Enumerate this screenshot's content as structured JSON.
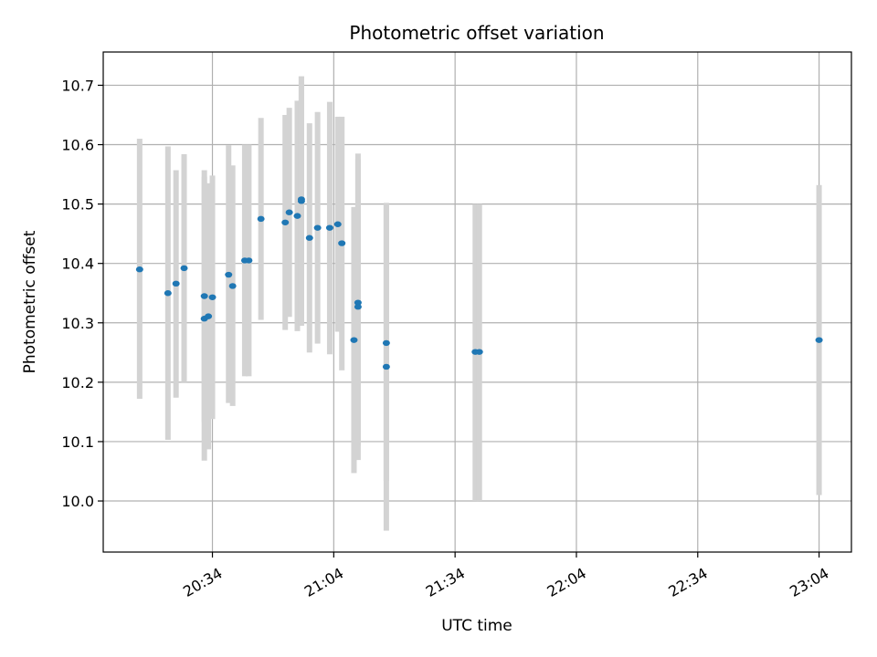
{
  "chart_data": {
    "type": "scatter",
    "title": "Photometric offset variation",
    "xlabel": "UTC time",
    "ylabel": "Photometric offset",
    "grid": true,
    "x_tick_labels": [
      "20:34",
      "21:04",
      "21:34",
      "22:04",
      "22:34",
      "23:04"
    ],
    "y_tick_labels": [
      "10.0",
      "10.1",
      "10.2",
      "10.3",
      "10.4",
      "10.5",
      "10.6",
      "10.7"
    ],
    "y_ticks": [
      10.0,
      10.1,
      10.2,
      10.3,
      10.4,
      10.5,
      10.6,
      10.7
    ],
    "xlim": [
      "20:07",
      "23:12"
    ],
    "ylim": [
      9.914,
      10.756
    ],
    "colors": {
      "point": "#1f77b4",
      "errorbar": "#d3d3d3",
      "grid": "#b0b0b0"
    },
    "series": [
      {
        "points": [
          {
            "x": "20:16",
            "y": 10.39,
            "lo": 10.172,
            "hi": 10.61
          },
          {
            "x": "20:23",
            "y": 10.35,
            "lo": 10.103,
            "hi": 10.597
          },
          {
            "x": "20:25",
            "y": 10.366,
            "lo": 10.174,
            "hi": 10.557
          },
          {
            "x": "20:27",
            "y": 10.392,
            "lo": 10.2,
            "hi": 10.584
          },
          {
            "x": "20:32",
            "y": 10.345,
            "lo": 10.133,
            "hi": 10.557
          },
          {
            "x": "20:32",
            "y": 10.307,
            "lo": 10.068,
            "hi": 10.546
          },
          {
            "x": "20:33",
            "y": 10.311,
            "lo": 10.087,
            "hi": 10.535
          },
          {
            "x": "20:34",
            "y": 10.343,
            "lo": 10.138,
            "hi": 10.548
          },
          {
            "x": "20:38",
            "y": 10.381,
            "lo": 10.165,
            "hi": 10.599
          },
          {
            "x": "20:39",
            "y": 10.362,
            "lo": 10.16,
            "hi": 10.565
          },
          {
            "x": "20:42",
            "y": 10.405,
            "lo": 10.21,
            "hi": 10.6
          },
          {
            "x": "20:43",
            "y": 10.405,
            "lo": 10.21,
            "hi": 10.6
          },
          {
            "x": "20:46",
            "y": 10.475,
            "lo": 10.305,
            "hi": 10.645
          },
          {
            "x": "20:52",
            "y": 10.469,
            "lo": 10.288,
            "hi": 10.65
          },
          {
            "x": "20:53",
            "y": 10.486,
            "lo": 10.31,
            "hi": 10.662
          },
          {
            "x": "20:55",
            "y": 10.48,
            "lo": 10.286,
            "hi": 10.674
          },
          {
            "x": "20:56",
            "y": 10.505,
            "lo": 10.295,
            "hi": 10.715
          },
          {
            "x": "20:56",
            "y": 10.508,
            "lo": 10.3,
            "hi": 10.715
          },
          {
            "x": "20:58",
            "y": 10.443,
            "lo": 10.25,
            "hi": 10.636
          },
          {
            "x": "21:00",
            "y": 10.46,
            "lo": 10.265,
            "hi": 10.655
          },
          {
            "x": "21:03",
            "y": 10.46,
            "lo": 10.247,
            "hi": 10.672
          },
          {
            "x": "21:05",
            "y": 10.466,
            "lo": 10.285,
            "hi": 10.647
          },
          {
            "x": "21:06",
            "y": 10.434,
            "lo": 10.22,
            "hi": 10.647
          },
          {
            "x": "21:09",
            "y": 10.271,
            "lo": 10.047,
            "hi": 10.495
          },
          {
            "x": "21:10",
            "y": 10.334,
            "lo": 10.093,
            "hi": 10.575
          },
          {
            "x": "21:10",
            "y": 10.327,
            "lo": 10.069,
            "hi": 10.585
          },
          {
            "x": "21:17",
            "y": 10.226,
            "lo": 9.95,
            "hi": 10.502
          },
          {
            "x": "21:17",
            "y": 10.266,
            "lo": 10.034,
            "hi": 10.498
          },
          {
            "x": "21:39",
            "y": 10.251,
            "lo": 10.0,
            "hi": 10.5
          },
          {
            "x": "21:40",
            "y": 10.251,
            "lo": 10.0,
            "hi": 10.5
          },
          {
            "x": "23:04",
            "y": 10.271,
            "lo": 10.01,
            "hi": 10.532
          }
        ]
      }
    ]
  }
}
